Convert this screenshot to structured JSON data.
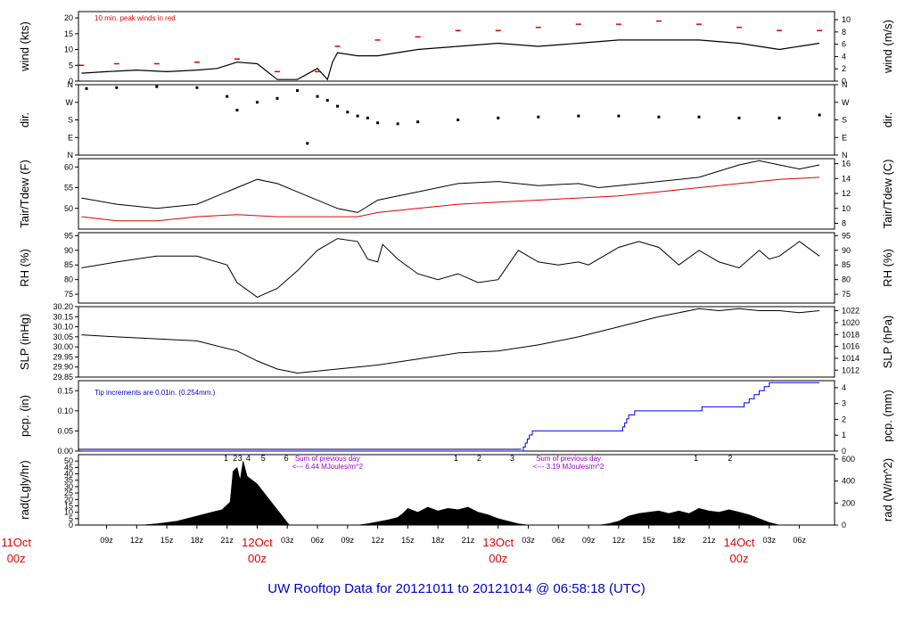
{
  "footer_title": "UW Rooftop Data for 20121011  to  20121014 @ 06:58:18  (UTC)",
  "colors": {
    "axis": "#000000",
    "wind": "#000000",
    "peak": "#e00000",
    "tair": "#000000",
    "tdew": "#e00000",
    "pcp": "#0000ff",
    "purple": "#9900cc",
    "date": "#e00000",
    "title": "#0000cc",
    "note_blue": "#0000cc"
  },
  "chart_data": [
    {
      "type": "line",
      "panel": "wind",
      "ylabel_left": "wind (kts)",
      "ylabel_right": "wind (m/s)",
      "ylim": [
        0,
        22
      ],
      "yticks_left": [
        0,
        5,
        10,
        15,
        20
      ],
      "yticks_right": [
        0,
        2,
        4,
        6,
        8,
        10
      ],
      "annotation": "10 min. peak winds in red",
      "series": [
        {
          "name": "wind",
          "x": [
            6.5,
            9,
            12,
            15,
            18,
            20,
            22,
            24,
            26,
            28,
            30,
            31,
            31.5,
            32,
            34,
            36,
            40,
            44,
            48,
            52,
            56,
            60,
            64,
            68,
            72,
            76,
            78,
            80
          ],
          "values": [
            2.5,
            3,
            3.5,
            3,
            3.5,
            4,
            6,
            5.5,
            0.5,
            0.5,
            4,
            0.5,
            6,
            9,
            8,
            8,
            10,
            11,
            12,
            11,
            12,
            13,
            13,
            13,
            12,
            10,
            11,
            12
          ]
        },
        {
          "name": "10 min peak",
          "x": [
            6.5,
            10,
            14,
            18,
            22,
            26,
            30,
            32,
            36,
            40,
            44,
            48,
            52,
            56,
            60,
            64,
            68,
            72,
            76,
            80
          ],
          "values": [
            5,
            5.5,
            5.5,
            6,
            7,
            3,
            3,
            11,
            13,
            14,
            16,
            16,
            17,
            18,
            18,
            19,
            18,
            17,
            16,
            16
          ]
        }
      ]
    },
    {
      "type": "scatter",
      "panel": "dir",
      "ylabel_left": "dir.",
      "ylabel_right": "dir.",
      "ylim": [
        0,
        360
      ],
      "yticklabels": [
        "N",
        "E",
        "S",
        "W",
        "N"
      ],
      "series": [
        {
          "name": "direction",
          "x": [
            7,
            10,
            14,
            18,
            21,
            22,
            24,
            26,
            28,
            29,
            30,
            31,
            32,
            33,
            34,
            35,
            36,
            38,
            40,
            44,
            48,
            52,
            56,
            60,
            64,
            68,
            72,
            76,
            80
          ],
          "values": [
            340,
            345,
            350,
            345,
            300,
            230,
            270,
            290,
            330,
            60,
            300,
            280,
            250,
            220,
            200,
            190,
            165,
            160,
            170,
            180,
            190,
            195,
            200,
            200,
            195,
            195,
            190,
            190,
            205
          ]
        }
      ]
    },
    {
      "type": "line",
      "panel": "temperature",
      "ylabel_left": "Tair/Tdew (F)",
      "ylabel_right": "Tair/Tdew (C)",
      "ylim": [
        45,
        62
      ],
      "yticks_left": [
        50,
        55,
        60
      ],
      "yticks_right": [
        8,
        10,
        12,
        14,
        16
      ],
      "series": [
        {
          "name": "Tair",
          "x": [
            6.5,
            10,
            14,
            18,
            22,
            24,
            26,
            28,
            32,
            34,
            36,
            40,
            44,
            48,
            52,
            56,
            58,
            60,
            64,
            68,
            72,
            74,
            76,
            78,
            80
          ],
          "values": [
            52.5,
            51,
            50,
            51,
            55,
            57,
            56,
            54,
            50,
            49,
            52,
            54,
            56,
            56.5,
            55.5,
            56,
            55,
            55.5,
            56.5,
            57.5,
            60.5,
            61.5,
            60.5,
            59.5,
            60.5
          ]
        },
        {
          "name": "Tdew",
          "x": [
            6.5,
            10,
            14,
            18,
            22,
            26,
            28,
            32,
            34,
            36,
            40,
            44,
            48,
            52,
            56,
            60,
            64,
            68,
            72,
            76,
            80
          ],
          "values": [
            48,
            47,
            47,
            48,
            48.5,
            48,
            48,
            48,
            48,
            49,
            50,
            51,
            51.5,
            52,
            52.5,
            53,
            54,
            55,
            56,
            57,
            57.5
          ]
        }
      ]
    },
    {
      "type": "line",
      "panel": "rh",
      "ylabel_left": "RH (%)",
      "ylabel_right": "RH (%)",
      "ylim": [
        72,
        96
      ],
      "yticks": [
        75,
        80,
        85,
        90,
        95
      ],
      "series": [
        {
          "name": "RH",
          "x": [
            6.5,
            10,
            14,
            18,
            21,
            22,
            24,
            26,
            28,
            30,
            32,
            34,
            35,
            36,
            36.5,
            38,
            40,
            42,
            44,
            46,
            48,
            50,
            52,
            54,
            56,
            57,
            58,
            60,
            62,
            64,
            66,
            68,
            70,
            72,
            74,
            75,
            76,
            78,
            80
          ],
          "values": [
            84,
            86,
            88,
            88,
            85,
            79,
            74,
            77,
            83,
            90,
            94,
            93,
            87,
            86,
            92,
            87,
            82,
            80,
            82,
            79,
            80,
            90,
            86,
            85,
            86,
            85,
            87,
            91,
            93,
            91,
            85,
            90,
            86,
            84,
            90,
            87,
            88,
            93,
            88
          ]
        }
      ]
    },
    {
      "type": "line",
      "panel": "slp",
      "ylabel_left": "SLP (inHg)",
      "ylabel_right": "SLP (hPa)",
      "ylim": [
        29.85,
        30.2
      ],
      "yticks_left": [
        29.85,
        29.9,
        29.95,
        30.0,
        30.05,
        30.1,
        30.15,
        30.2
      ],
      "yticks_right": [
        1012,
        1014,
        1016,
        1018,
        1020,
        1022
      ],
      "series": [
        {
          "name": "SLP",
          "x": [
            6.5,
            10,
            14,
            18,
            22,
            24,
            26,
            28,
            30,
            32,
            36,
            40,
            44,
            48,
            52,
            56,
            60,
            64,
            68,
            70,
            72,
            74,
            76,
            78,
            80
          ],
          "values": [
            30.06,
            30.05,
            30.04,
            30.03,
            29.98,
            29.93,
            29.89,
            29.87,
            29.88,
            29.89,
            29.91,
            29.94,
            29.97,
            29.98,
            30.01,
            30.05,
            30.1,
            30.15,
            30.19,
            30.18,
            30.19,
            30.18,
            30.18,
            30.17,
            30.18
          ]
        }
      ]
    },
    {
      "type": "line",
      "panel": "precip",
      "ylabel_left": "pcp. (in)",
      "ylabel_right": "pcp. (mm)",
      "ylim": [
        0,
        0.175
      ],
      "yticks_left": [
        0.0,
        0.05,
        0.1,
        0.15
      ],
      "yticks_right": [
        0,
        1,
        2,
        3,
        4
      ],
      "annotation": "Tip increments are 0.01in. (0.254mm.)",
      "series": [
        {
          "name": "accumulated precipitation",
          "x": [
            6.5,
            50.3,
            50.5,
            50.7,
            50.9,
            51.1,
            51.4,
            51.6,
            60.2,
            60.4,
            60.6,
            60.8,
            61.0,
            61.3,
            61.6,
            62.0,
            62.3,
            68.0,
            68.3,
            68.6,
            72.0,
            72.5,
            73.0,
            73.5,
            74.0,
            74.5,
            75.0,
            75.5,
            77.5,
            80
          ],
          "values": [
            0,
            0,
            0.01,
            0.02,
            0.03,
            0.04,
            0.05,
            0.05,
            0.05,
            0.06,
            0.07,
            0.08,
            0.09,
            0.09,
            0.1,
            0.1,
            0.1,
            0.1,
            0.11,
            0.11,
            0.11,
            0.12,
            0.13,
            0.14,
            0.15,
            0.16,
            0.17,
            0.17,
            0.17,
            0.17
          ]
        }
      ]
    },
    {
      "type": "area",
      "panel": "radiation",
      "ylabel_left": "rad(Lgly/hr)",
      "ylabel_right": "rad (W/m^2)",
      "ylim": [
        0,
        55
      ],
      "yticks_left": [
        0,
        5,
        10,
        15,
        20,
        25,
        30,
        35,
        40,
        45,
        50
      ],
      "yticks_right": [
        0,
        200,
        400,
        600
      ],
      "annotations": [
        {
          "x": 31,
          "text_lines": [
            "Sum of previous day",
            "<--- 6.44 MJoules/m^2"
          ]
        },
        {
          "x": 55,
          "text_lines": [
            "Sum of previous day",
            "<--- 3.19 MJoules/m^2"
          ]
        }
      ],
      "hour_markers": [
        {
          "x": 20.9,
          "label": "1"
        },
        {
          "x": 21.8,
          "label": "2"
        },
        {
          "x": 22.3,
          "label": "3"
        },
        {
          "x": 23.1,
          "label": "4"
        },
        {
          "x": 24.6,
          "label": "5"
        },
        {
          "x": 26.9,
          "label": "6"
        },
        {
          "x": 43.8,
          "label": "1"
        },
        {
          "x": 46.1,
          "label": "2"
        },
        {
          "x": 49.4,
          "label": "3"
        },
        {
          "x": 67.7,
          "label": "1"
        },
        {
          "x": 71.1,
          "label": "2"
        }
      ],
      "series": [
        {
          "name": "solar radiation",
          "x": [
            12.5,
            14,
            16,
            18,
            19.5,
            20.5,
            21.3,
            21.6,
            22,
            22.3,
            22.6,
            23,
            24,
            25,
            26,
            26.8,
            27.2,
            34,
            35,
            37,
            38,
            38.5,
            39,
            40,
            41,
            42,
            43,
            44,
            45,
            46,
            47,
            48,
            49,
            50,
            51,
            58,
            59,
            60,
            61,
            62,
            63,
            64,
            65,
            66,
            67,
            68,
            69,
            70,
            71,
            72,
            73,
            74,
            75,
            76
          ],
          "values": [
            0,
            1,
            3,
            7,
            10,
            12,
            18,
            42,
            45,
            35,
            50,
            38,
            32,
            22,
            12,
            4,
            0,
            0,
            1,
            4,
            6,
            9,
            13,
            10,
            14,
            11,
            13,
            12,
            14,
            10,
            8,
            5,
            3,
            1,
            0,
            0,
            1,
            3,
            7,
            9,
            10,
            11,
            9,
            11,
            9,
            13,
            11,
            10,
            12,
            10,
            8,
            5,
            2,
            0
          ]
        }
      ]
    },
    {
      "type": "axis",
      "panel": "time",
      "xlim": [
        6.2,
        81.5
      ],
      "x_tick_labels": [
        "09z",
        "12z",
        "15z",
        "18z",
        "21z",
        "12Oct",
        "03z",
        "06z",
        "09z",
        "12z",
        "15z",
        "18z",
        "21z",
        "13Oct",
        "03z",
        "06z",
        "09z",
        "12z",
        "15z",
        "18z",
        "21z",
        "14Oct",
        "03z",
        "06z"
      ],
      "date_labels": [
        {
          "day": "11Oct",
          "hour": "00z"
        },
        {
          "day": "12Oct",
          "hour": "00z"
        },
        {
          "day": "13Oct",
          "hour": "00z"
        },
        {
          "day": "14Oct",
          "hour": "00z"
        }
      ]
    }
  ]
}
